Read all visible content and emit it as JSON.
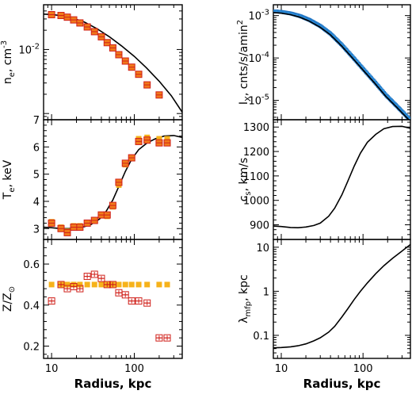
{
  "chart_data": [
    {
      "panel": "ne",
      "type": "scatter",
      "ylabel_main": "n",
      "ylabel_sub": "e",
      "ylabel_unit": ", cm",
      "ylabel_sup": "-3",
      "xscale": "log",
      "yscale": "log",
      "xlim": [
        8,
        380
      ],
      "ylim": [
        0.0008,
        0.05
      ],
      "yticks": [
        {
          "v": 0.01,
          "base": "10",
          "exp": "-2"
        }
      ],
      "x": [
        10,
        13,
        15.5,
        18.5,
        22,
        27,
        33,
        40,
        47,
        55,
        65,
        78,
        93,
        113,
        143,
        200
      ],
      "y": [
        0.035,
        0.034,
        0.032,
        0.029,
        0.026,
        0.0225,
        0.019,
        0.0158,
        0.0128,
        0.0106,
        0.0083,
        0.0066,
        0.0053,
        0.0041,
        0.0028,
        0.00195
      ],
      "model_x": [
        8,
        10,
        13,
        18,
        25,
        35,
        50,
        70,
        100,
        140,
        200,
        280,
        380
      ],
      "model_y": [
        0.0357,
        0.0352,
        0.0338,
        0.031,
        0.0268,
        0.0213,
        0.0158,
        0.0114,
        0.0078,
        0.0052,
        0.0032,
        0.0019,
        0.00105
      ]
    },
    {
      "panel": "Te",
      "type": "scatter",
      "ylabel_main": "T",
      "ylabel_sub": "e",
      "ylabel_unit": ", keV",
      "xscale": "log",
      "yscale": "linear",
      "xlim": [
        8,
        380
      ],
      "ylim": [
        2.6,
        7
      ],
      "yticks": [
        3,
        4,
        5,
        6,
        7
      ],
      "x": [
        10,
        13,
        15.5,
        18.5,
        22,
        27,
        33,
        40,
        47,
        55,
        65,
        78,
        93,
        113,
        143,
        200,
        250
      ],
      "y": [
        3.2,
        3.0,
        2.85,
        3.05,
        3.05,
        3.2,
        3.3,
        3.5,
        3.5,
        3.85,
        4.7,
        5.4,
        5.6,
        6.2,
        6.25,
        6.15,
        6.15
      ],
      "yellow_y": [
        3.25,
        3.05,
        2.9,
        3.1,
        3.1,
        3.22,
        3.32,
        3.5,
        3.45,
        3.8,
        4.6,
        5.35,
        5.6,
        6.3,
        6.35,
        6.3,
        6.3
      ],
      "model_x": [
        8,
        10,
        13,
        16,
        20,
        25,
        30,
        38,
        45,
        55,
        65,
        78,
        93,
        113,
        143,
        180,
        230,
        300,
        380
      ],
      "model_y": [
        3.05,
        3.03,
        3.0,
        3.0,
        3.02,
        3.07,
        3.15,
        3.35,
        3.6,
        4.05,
        4.55,
        5.1,
        5.55,
        5.9,
        6.15,
        6.3,
        6.4,
        6.42,
        6.35
      ]
    },
    {
      "panel": "Z",
      "type": "scatter",
      "ylabel_main": "Z/Z",
      "ylabel_sub": "⊙",
      "xscale": "log",
      "yscale": "linear",
      "xlim": [
        8,
        380
      ],
      "ylim": [
        0.14,
        0.72
      ],
      "yticks": [
        0.2,
        0.4,
        0.6
      ],
      "xticks": [
        10,
        100
      ],
      "xlabel": "Radius, kpc",
      "x": [
        10,
        13,
        15.5,
        18.5,
        22,
        27,
        33,
        40,
        47,
        55,
        65,
        78,
        93,
        113,
        143,
        200,
        250
      ],
      "y": [
        0.42,
        0.5,
        0.48,
        0.49,
        0.48,
        0.54,
        0.55,
        0.53,
        0.5,
        0.5,
        0.46,
        0.45,
        0.42,
        0.42,
        0.41,
        0.24,
        0.24
      ],
      "yellow_y": [
        0.5,
        0.5,
        0.5,
        0.5,
        0.5,
        0.5,
        0.5,
        0.5,
        0.5,
        0.5,
        0.5,
        0.5,
        0.5,
        0.5,
        0.5,
        0.5,
        0.5
      ]
    },
    {
      "panel": "Ix",
      "type": "line",
      "ylabel_main": "I",
      "ylabel_sub": "X",
      "ylabel_unit": ", cnts/s/amin",
      "ylabel_sup": "2",
      "xscale": "log",
      "yscale": "log",
      "xlim": [
        8,
        380
      ],
      "ylim": [
        3.5e-06,
        0.0018
      ],
      "yticks": [
        {
          "v": 0.001,
          "base": "10",
          "exp": "-3"
        },
        {
          "v": 0.0001,
          "base": "10",
          "exp": "-4"
        },
        {
          "v": 1e-05,
          "base": "10",
          "exp": "-5"
        }
      ],
      "model_x": [
        8,
        10,
        13,
        17,
        22,
        30,
        40,
        55,
        75,
        100,
        140,
        190,
        260,
        380
      ],
      "model_y": [
        0.00118,
        0.00114,
        0.00105,
        0.00091,
        0.00074,
        0.00053,
        0.00035,
        0.00019,
        9.8e-05,
        5.2e-05,
        2.5e-05,
        1.25e-05,
        6.8e-06,
        3.2e-06
      ]
    },
    {
      "panel": "cs",
      "type": "line",
      "ylabel_main": "c",
      "ylabel_sub": "s",
      "ylabel_unit": ", km/s",
      "xscale": "log",
      "yscale": "linear",
      "xlim": [
        8,
        380
      ],
      "ylim": [
        840,
        1330
      ],
      "yticks": [
        900,
        1000,
        1100,
        1200,
        1300
      ],
      "model_x": [
        8,
        10,
        13,
        16,
        20,
        25,
        30,
        38,
        45,
        55,
        65,
        78,
        93,
        113,
        143,
        180,
        230,
        300,
        380
      ],
      "model_y": [
        895,
        893,
        889,
        888,
        891,
        897,
        907,
        935,
        968,
        1022,
        1078,
        1140,
        1193,
        1238,
        1270,
        1293,
        1302,
        1303,
        1295
      ]
    },
    {
      "panel": "lmfp",
      "type": "line",
      "ylabel_main": "λ",
      "ylabel_sub": "mfp",
      "ylabel_unit": ", kpc",
      "xscale": "log",
      "yscale": "log",
      "xlim": [
        8,
        380
      ],
      "ylim": [
        0.03,
        15
      ],
      "yticks": [
        {
          "v": 0.1,
          "label": "0.1"
        },
        {
          "v": 1,
          "label": "1"
        },
        {
          "v": 10,
          "label": "10"
        }
      ],
      "xticks": [
        10,
        100
      ],
      "xlabel": "Radius, kpc",
      "model_x": [
        8,
        10,
        13,
        16,
        20,
        25,
        30,
        38,
        45,
        55,
        65,
        78,
        93,
        113,
        143,
        180,
        230,
        300,
        380
      ],
      "model_y": [
        0.052,
        0.053,
        0.055,
        0.058,
        0.064,
        0.075,
        0.088,
        0.118,
        0.16,
        0.26,
        0.4,
        0.65,
        1.0,
        1.55,
        2.5,
        3.8,
        5.6,
        8.2,
        11.5
      ]
    }
  ]
}
